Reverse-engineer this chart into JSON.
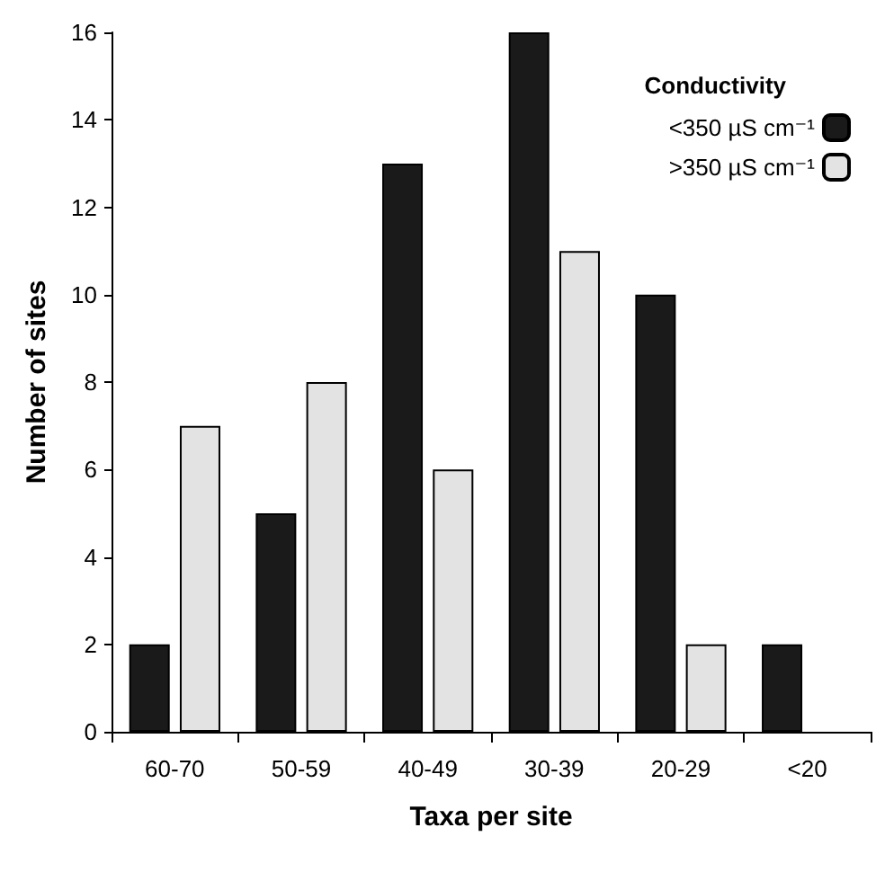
{
  "chart_data": {
    "type": "bar",
    "xlabel": "Taxa per site",
    "ylabel": "Number of sites",
    "legend_title": "Conductivity",
    "categories": [
      "60-70",
      "50-59",
      "40-49",
      "30-39",
      "20-29",
      "<20"
    ],
    "series": [
      {
        "name": "<350 µS cm⁻¹",
        "color": "#1a1a1a",
        "values": [
          2,
          5,
          13,
          16,
          10,
          2
        ]
      },
      {
        "name": ">350 µS cm⁻¹",
        "color": "#e3e3e3",
        "values": [
          7,
          8,
          6,
          11,
          2,
          null
        ]
      }
    ],
    "ylim": [
      0,
      16
    ],
    "yticks": [
      0,
      2,
      4,
      6,
      8,
      10,
      12,
      14,
      16
    ],
    "grid": false,
    "legend": "top right"
  }
}
